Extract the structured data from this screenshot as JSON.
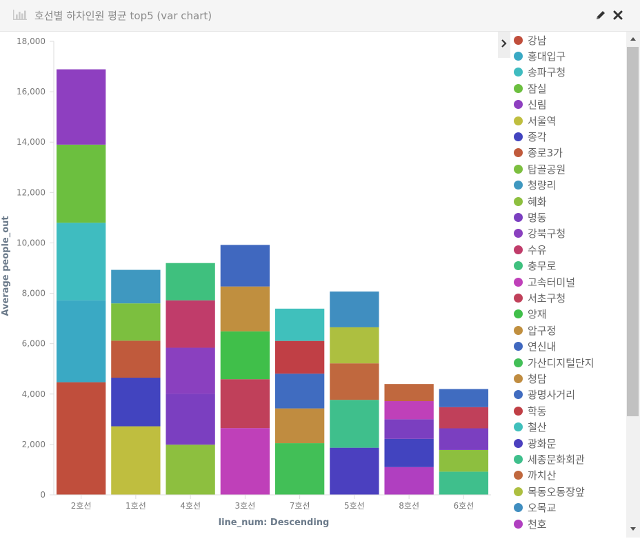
{
  "panel": {
    "title": "호선별 하차인원 평균 top5 (var chart)",
    "icon": "bar-chart-icon",
    "edit_icon": "pencil-icon",
    "close_icon": "close-icon"
  },
  "colors": {
    "강남": "#c04e3c",
    "홍대입구": "#3aa9c4",
    "송파구청": "#3fbcc0",
    "잠실": "#6cbf3f",
    "신림": "#8e3fc0",
    "서울역": "#bfbe3f",
    "종각": "#4244bf",
    "종로3가": "#c05a3c",
    "탑골공원": "#7cbf3f",
    "청량리": "#3f98c0",
    "혜화": "#8dbf3f",
    "명동": "#7b3fc0",
    "강북구청": "#8a40bf",
    "수유": "#c03c6a",
    "충무로": "#3fc07e",
    "고속터미널": "#bf40b9",
    "서초구청": "#c0405a",
    "양재": "#40bf4a",
    "압구정": "#c08f3f",
    "연신내": "#4068bf",
    "가산디지털단지": "#42bf57",
    "청담": "#c08c40",
    "광명사거리": "#406cc0",
    "학동": "#c03f45",
    "철산": "#40c0bc",
    "광화문": "#4b40bf",
    "세종문화회관": "#3fbf8c",
    "까치산": "#c0683e",
    "목동오동장앞": "#adbf40",
    "오목교": "#408ec0",
    "천호": "#b03fc0"
  },
  "legend": [
    "강남",
    "홍대입구",
    "송파구청",
    "잠실",
    "신림",
    "서울역",
    "종각",
    "종로3가",
    "탑골공원",
    "청량리",
    "혜화",
    "명동",
    "강북구청",
    "수유",
    "충무로",
    "고속터미널",
    "서초구청",
    "양재",
    "압구정",
    "연신내",
    "가산디지털단지",
    "청담",
    "광명사거리",
    "학동",
    "철산",
    "광화문",
    "세종문화회관",
    "까치산",
    "목동오동장앞",
    "오목교",
    "천호"
  ],
  "chart_data": {
    "type": "bar",
    "stacked": true,
    "xlabel": "line_num: Descending",
    "ylabel": "Average people_out",
    "ylim": [
      0,
      18000
    ],
    "yticks": [
      0,
      2000,
      4000,
      6000,
      8000,
      10000,
      12000,
      14000,
      16000,
      18000
    ],
    "yticks_text": [
      "0",
      "2,000",
      "4,000",
      "6,000",
      "8,000",
      "10,000",
      "12,000",
      "14,000",
      "16,000",
      "18,000"
    ],
    "categories": [
      "2호선",
      "1호선",
      "4호선",
      "3호선",
      "7호선",
      "5호선",
      "8호선",
      "6호선"
    ],
    "stacks": [
      [
        {
          "name": "강남",
          "value": 4470
        },
        {
          "name": "홍대입구",
          "value": 3250
        },
        {
          "name": "송파구청",
          "value": 3080
        },
        {
          "name": "잠실",
          "value": 3100
        },
        {
          "name": "신림",
          "value": 2990
        }
      ],
      [
        {
          "name": "서울역",
          "value": 2720
        },
        {
          "name": "종각",
          "value": 1930
        },
        {
          "name": "종로3가",
          "value": 1470
        },
        {
          "name": "탑골공원",
          "value": 1480
        },
        {
          "name": "청량리",
          "value": 1330
        }
      ],
      [
        {
          "name": "혜화",
          "value": 1990
        },
        {
          "name": "명동",
          "value": 2020
        },
        {
          "name": "강북구청",
          "value": 1830
        },
        {
          "name": "수유",
          "value": 1880
        },
        {
          "name": "충무로",
          "value": 1480
        }
      ],
      [
        {
          "name": "고속터미널",
          "value": 2650
        },
        {
          "name": "서초구청",
          "value": 1940
        },
        {
          "name": "양재",
          "value": 1900
        },
        {
          "name": "압구정",
          "value": 1780
        },
        {
          "name": "연신내",
          "value": 1650
        }
      ],
      [
        {
          "name": "가산디지털단지",
          "value": 2050
        },
        {
          "name": "청담",
          "value": 1380
        },
        {
          "name": "광명사거리",
          "value": 1380
        },
        {
          "name": "학동",
          "value": 1300
        },
        {
          "name": "철산",
          "value": 1280
        }
      ],
      [
        {
          "name": "광화문",
          "value": 1870
        },
        {
          "name": "세종문화회관",
          "value": 1900
        },
        {
          "name": "까치산",
          "value": 1450
        },
        {
          "name": "목동오동장앞",
          "value": 1430
        },
        {
          "name": "오목교",
          "value": 1420
        }
      ],
      [
        {
          "name": "천호",
          "value": 1100
        },
        {
          "name": "종각",
          "value": 1120
        },
        {
          "name": "명동",
          "value": 780
        },
        {
          "name": "고속터미널",
          "value": 720
        },
        {
          "name": "까치산",
          "value": 680
        }
      ],
      [
        {
          "name": "세종문화회관",
          "value": 920
        },
        {
          "name": "혜화",
          "value": 860
        },
        {
          "name": "명동",
          "value": 860
        },
        {
          "name": "서초구청",
          "value": 840
        },
        {
          "name": "광명사거리",
          "value": 720
        }
      ]
    ]
  }
}
